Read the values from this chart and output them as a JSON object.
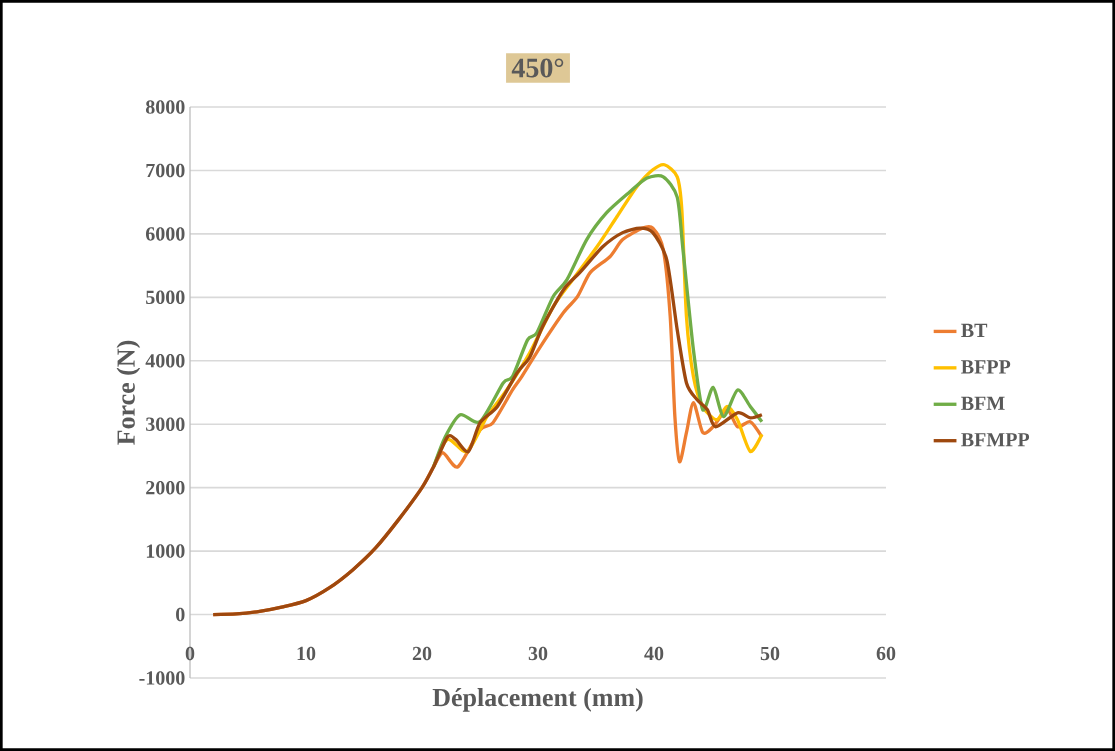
{
  "chart_data": {
    "type": "line",
    "title": "450°",
    "xlabel": "Déplacement (mm)",
    "ylabel": "Force (N)",
    "xlim": [
      0,
      60
    ],
    "xticks": [
      0,
      10,
      20,
      30,
      40,
      50,
      60
    ],
    "ylim": [
      -1000,
      8000
    ],
    "yticks": [
      -1000,
      0,
      1000,
      2000,
      3000,
      4000,
      5000,
      6000,
      7000,
      8000
    ],
    "grid": "y",
    "legend": "right",
    "marker": "none",
    "line_style": "solid",
    "series": [
      {
        "name": "BT",
        "color": "#ed7d31",
        "x": [
          2,
          4,
          6,
          8,
          10,
          12,
          14,
          16,
          18,
          20,
          21,
          21.8,
          23.1,
          25,
          26.1,
          27.8,
          28.6,
          30.2,
          32.2,
          33.4,
          34.5,
          36.2,
          37.3,
          39.0,
          39.9,
          40.8,
          41.4,
          41.8,
          42.2,
          42.8,
          43.4,
          44.2,
          45.1,
          46.3,
          47.2,
          48.3,
          49.3
        ],
        "values": [
          0,
          10,
          50,
          120,
          220,
          420,
          700,
          1050,
          1500,
          2000,
          2330,
          2550,
          2330,
          2910,
          3020,
          3540,
          3750,
          4220,
          4760,
          5010,
          5390,
          5640,
          5910,
          6090,
          6090,
          5750,
          4690,
          3120,
          2410,
          2870,
          3340,
          2870,
          2960,
          3230,
          2960,
          3040,
          2800
        ]
      },
      {
        "name": "BFPP",
        "color": "#ffc000",
        "x": [
          21,
          22.2,
          23.9,
          25.6,
          27.3,
          29.3,
          31.3,
          33.0,
          35.1,
          36.8,
          38.5,
          39.9,
          40.9,
          42.0,
          42.4,
          42.8,
          43.4,
          44.2,
          45.4,
          46.3,
          47.2,
          48.3,
          49.3
        ],
        "values": [
          2330,
          2760,
          2570,
          3120,
          3540,
          4130,
          4850,
          5280,
          5800,
          6270,
          6740,
          7010,
          7090,
          6900,
          6380,
          4690,
          3750,
          3280,
          3070,
          3280,
          3070,
          2570,
          2840
        ]
      },
      {
        "name": "BFM",
        "color": "#70ad47",
        "x": [
          21,
          22.0,
          23.3,
          25.0,
          27.0,
          27.8,
          29.1,
          29.9,
          31.3,
          32.5,
          34.2,
          35.9,
          37.9,
          39.4,
          40.8,
          42.0,
          42.5,
          43.4,
          44.2,
          45.1,
          46.0,
          47.2,
          48.3,
          49.3
        ],
        "values": [
          2330,
          2800,
          3150,
          3040,
          3650,
          3750,
          4330,
          4440,
          5010,
          5280,
          5910,
          6330,
          6660,
          6880,
          6900,
          6580,
          5750,
          4170,
          3230,
          3580,
          3120,
          3540,
          3280,
          3040
        ]
      },
      {
        "name": "BFMPP",
        "color": "#9e480e",
        "x": [
          2,
          4,
          6,
          8,
          10,
          12,
          14,
          16,
          18,
          20,
          21,
          22.2,
          22.9,
          24.0,
          25.0,
          26.5,
          28.2,
          29.3,
          30.4,
          32.2,
          33.6,
          35.6,
          37.3,
          38.8,
          39.9,
          41.1,
          42.0,
          42.8,
          43.7,
          44.6,
          45.3,
          47.2,
          48.3,
          49.3
        ],
        "values": [
          0,
          10,
          50,
          120,
          220,
          420,
          700,
          1050,
          1500,
          2000,
          2330,
          2800,
          2760,
          2570,
          3020,
          3280,
          3810,
          4060,
          4540,
          5120,
          5390,
          5800,
          6020,
          6090,
          6020,
          5590,
          4490,
          3650,
          3390,
          3230,
          2960,
          3180,
          3100,
          3150
        ]
      }
    ]
  }
}
